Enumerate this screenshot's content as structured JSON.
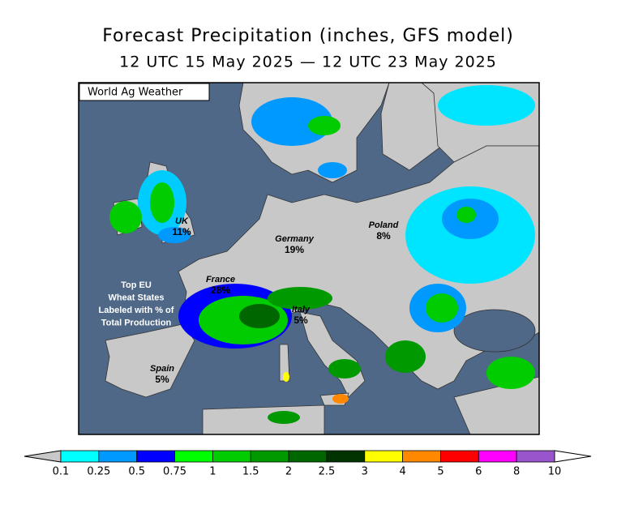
{
  "header": {
    "title": "Forecast Precipitation (inches, GFS model)",
    "subtitle": "12 UTC 15 May 2025 — 12 UTC 23 May 2025"
  },
  "map": {
    "credit": "World Ag Weather",
    "regions": [
      {
        "name": "UK",
        "share": "11%"
      },
      {
        "name": "Germany",
        "share": "19%"
      },
      {
        "name": "Poland",
        "share": "8%"
      },
      {
        "name": "France",
        "share": "28%"
      },
      {
        "name": "Italy",
        "share": "5%"
      },
      {
        "name": "Spain",
        "share": "5%"
      }
    ],
    "note": [
      "Top EU",
      "Wheat States",
      "Labeled with % of",
      "Total Production"
    ]
  },
  "legend": {
    "ticks": [
      0.1,
      0.25,
      0.5,
      0.75,
      1,
      1.5,
      2,
      2.5,
      3,
      4,
      5,
      6,
      8,
      10
    ],
    "colors": [
      "#00ffff",
      "#0099ff",
      "#0000ff",
      "#00ff00",
      "#00cc00",
      "#009900",
      "#006600",
      "#003300",
      "#ffff00",
      "#ff8800",
      "#ff0000",
      "#ff00ff",
      "#9955cc"
    ]
  }
}
